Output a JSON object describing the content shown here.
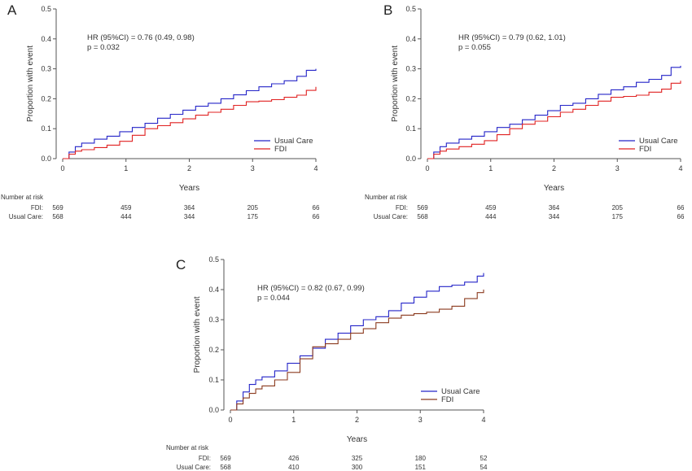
{
  "chart_data": [
    {
      "panel": "A",
      "type": "line",
      "xlabel": "Years",
      "ylabel": "Proportion with event",
      "xlim": [
        0,
        4
      ],
      "ylim": [
        0,
        0.5
      ],
      "x_ticks": [
        0,
        1,
        2,
        3,
        4
      ],
      "y_ticks": [
        "0.0",
        "0.1",
        "0.2",
        "0.3",
        "0.4",
        "0.5"
      ],
      "annotation": [
        "HR (95%CI) = 0.76 (0.49, 0.98)",
        "p = 0.032"
      ],
      "legend": {
        "position": "bottom-right",
        "entries": [
          "Usual Care",
          "FDI"
        ]
      },
      "series": [
        {
          "name": "Usual Care",
          "color": "#2424c8",
          "x": [
            0,
            0.1,
            0.2,
            0.3,
            0.5,
            0.7,
            0.9,
            1.1,
            1.3,
            1.5,
            1.7,
            1.9,
            2.1,
            2.3,
            2.5,
            2.7,
            2.9,
            3.1,
            3.3,
            3.5,
            3.7,
            3.85,
            4.0
          ],
          "y": [
            0,
            0.022,
            0.04,
            0.052,
            0.065,
            0.075,
            0.09,
            0.104,
            0.118,
            0.135,
            0.148,
            0.162,
            0.175,
            0.185,
            0.2,
            0.213,
            0.227,
            0.24,
            0.25,
            0.26,
            0.275,
            0.295,
            0.3
          ]
        },
        {
          "name": "FDI",
          "color": "#e02020",
          "x": [
            0,
            0.1,
            0.2,
            0.3,
            0.5,
            0.7,
            0.9,
            1.1,
            1.3,
            1.5,
            1.7,
            1.9,
            2.1,
            2.3,
            2.5,
            2.7,
            2.9,
            3.1,
            3.3,
            3.5,
            3.7,
            3.85,
            4.0
          ],
          "y": [
            0,
            0.015,
            0.025,
            0.03,
            0.037,
            0.045,
            0.058,
            0.078,
            0.1,
            0.11,
            0.12,
            0.133,
            0.145,
            0.155,
            0.165,
            0.178,
            0.19,
            0.192,
            0.197,
            0.205,
            0.212,
            0.228,
            0.24
          ]
        }
      ],
      "risk_table": {
        "title": "Number at risk",
        "rows": [
          {
            "label": "FDI:",
            "values": [
              "569",
              "459",
              "364",
              "205",
              "66"
            ]
          },
          {
            "label": "Usual Care:",
            "values": [
              "568",
              "444",
              "344",
              "175",
              "66"
            ]
          }
        ]
      }
    },
    {
      "panel": "B",
      "type": "line",
      "xlabel": "Years",
      "ylabel": "Proportion with event",
      "xlim": [
        0,
        4
      ],
      "ylim": [
        0,
        0.5
      ],
      "x_ticks": [
        0,
        1,
        2,
        3,
        4
      ],
      "y_ticks": [
        "0.0",
        "0.1",
        "0.2",
        "0.3",
        "0.4",
        "0.5"
      ],
      "annotation": [
        "HR (95%CI) = 0.79 (0.62, 1.01)",
        "p = 0.055"
      ],
      "legend": {
        "position": "bottom-right",
        "entries": [
          "Usual Care",
          "FDI"
        ]
      },
      "series": [
        {
          "name": "Usual Care",
          "color": "#2424c8",
          "x": [
            0,
            0.1,
            0.2,
            0.3,
            0.5,
            0.7,
            0.9,
            1.1,
            1.3,
            1.5,
            1.7,
            1.9,
            2.1,
            2.3,
            2.5,
            2.7,
            2.9,
            3.1,
            3.3,
            3.5,
            3.7,
            3.85,
            4.0
          ],
          "y": [
            0,
            0.022,
            0.04,
            0.052,
            0.065,
            0.075,
            0.09,
            0.104,
            0.115,
            0.13,
            0.145,
            0.16,
            0.178,
            0.185,
            0.2,
            0.215,
            0.23,
            0.24,
            0.255,
            0.265,
            0.278,
            0.305,
            0.31
          ]
        },
        {
          "name": "FDI",
          "color": "#e02020",
          "x": [
            0,
            0.1,
            0.2,
            0.3,
            0.5,
            0.7,
            0.9,
            1.1,
            1.3,
            1.5,
            1.7,
            1.9,
            2.1,
            2.3,
            2.5,
            2.7,
            2.9,
            3.1,
            3.3,
            3.5,
            3.7,
            3.85,
            4.0
          ],
          "y": [
            0,
            0.015,
            0.025,
            0.032,
            0.04,
            0.048,
            0.06,
            0.08,
            0.1,
            0.115,
            0.125,
            0.14,
            0.155,
            0.165,
            0.178,
            0.192,
            0.205,
            0.208,
            0.212,
            0.222,
            0.232,
            0.252,
            0.26
          ]
        }
      ],
      "risk_table": {
        "title": "Number at risk",
        "rows": [
          {
            "label": "FDI:",
            "values": [
              "569",
              "459",
              "364",
              "205",
              "66"
            ]
          },
          {
            "label": "Usual Care:",
            "values": [
              "568",
              "444",
              "344",
              "175",
              "66"
            ]
          }
        ]
      }
    },
    {
      "panel": "C",
      "type": "line",
      "xlabel": "Years",
      "ylabel": "Proportion with event",
      "xlim": [
        0,
        4
      ],
      "ylim": [
        0,
        0.5
      ],
      "x_ticks": [
        0,
        1,
        2,
        3,
        4
      ],
      "y_ticks": [
        "0.0",
        "0.1",
        "0.2",
        "0.3",
        "0.4",
        "0.5"
      ],
      "annotation": [
        "HR (95%CI) = 0.82 (0.67, 0.99)",
        "p = 0.044"
      ],
      "legend": {
        "position": "bottom-right",
        "entries": [
          "Usual Care",
          "FDI"
        ]
      },
      "series": [
        {
          "name": "Usual Care",
          "color": "#2424c8",
          "x": [
            0,
            0.1,
            0.2,
            0.3,
            0.4,
            0.5,
            0.7,
            0.9,
            1.1,
            1.3,
            1.5,
            1.7,
            1.9,
            2.1,
            2.3,
            2.5,
            2.7,
            2.9,
            3.1,
            3.3,
            3.5,
            3.7,
            3.9,
            4.0
          ],
          "y": [
            0,
            0.03,
            0.06,
            0.085,
            0.1,
            0.11,
            0.13,
            0.155,
            0.18,
            0.205,
            0.235,
            0.255,
            0.28,
            0.3,
            0.31,
            0.33,
            0.355,
            0.375,
            0.395,
            0.41,
            0.415,
            0.425,
            0.445,
            0.455
          ]
        },
        {
          "name": "FDI",
          "color": "#8b3a1e",
          "x": [
            0,
            0.1,
            0.2,
            0.3,
            0.4,
            0.5,
            0.7,
            0.9,
            1.1,
            1.3,
            1.5,
            1.7,
            1.9,
            2.1,
            2.3,
            2.5,
            2.7,
            2.9,
            3.1,
            3.3,
            3.5,
            3.7,
            3.9,
            4.0
          ],
          "y": [
            0,
            0.02,
            0.04,
            0.055,
            0.07,
            0.08,
            0.1,
            0.125,
            0.17,
            0.21,
            0.22,
            0.235,
            0.255,
            0.27,
            0.29,
            0.305,
            0.315,
            0.32,
            0.325,
            0.335,
            0.345,
            0.37,
            0.39,
            0.4
          ]
        }
      ],
      "risk_table": {
        "title": "Number at risk",
        "rows": [
          {
            "label": "FDI:",
            "values": [
              "569",
              "426",
              "325",
              "180",
              "52"
            ]
          },
          {
            "label": "Usual Care:",
            "values": [
              "568",
              "410",
              "300",
              "151",
              "54"
            ]
          }
        ]
      }
    }
  ]
}
